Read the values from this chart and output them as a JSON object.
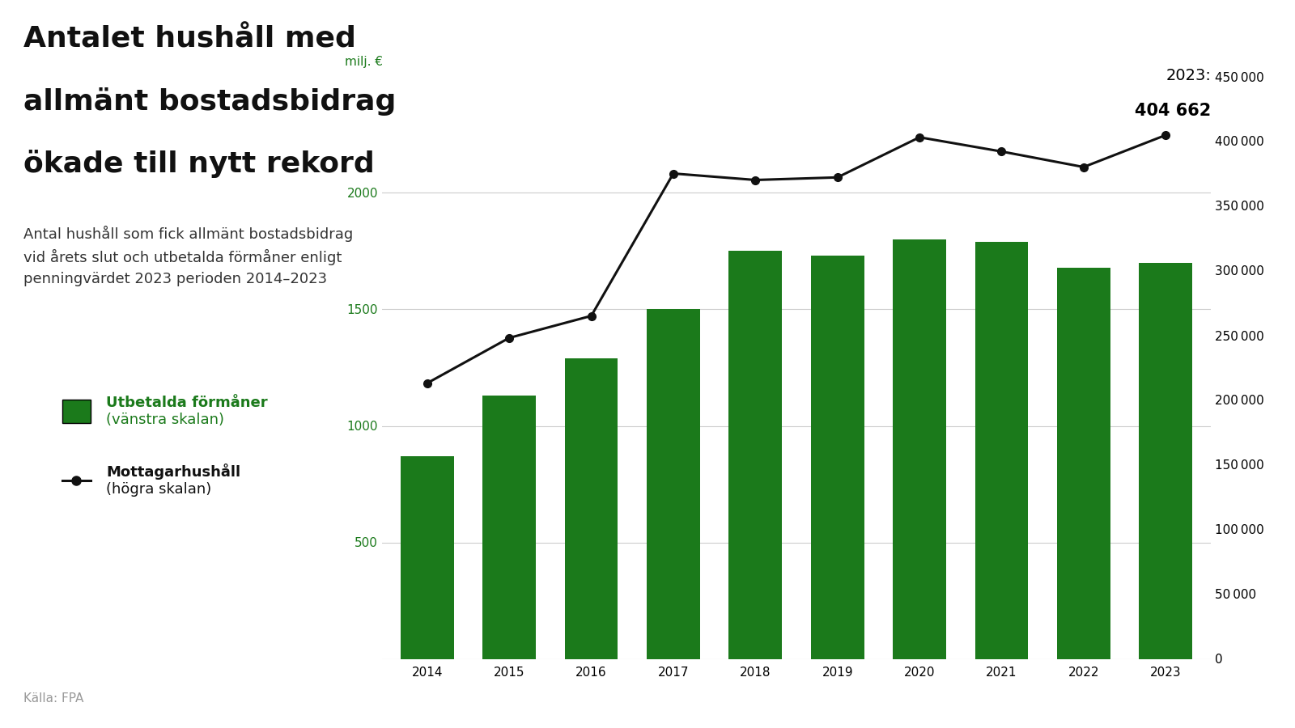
{
  "years": [
    2014,
    2015,
    2016,
    2017,
    2018,
    2019,
    2020,
    2021,
    2022,
    2023
  ],
  "bar_values": [
    870,
    1130,
    1290,
    1500,
    1750,
    1730,
    1800,
    1790,
    1680,
    1700
  ],
  "line_values": [
    213000,
    248000,
    265000,
    375000,
    370000,
    372000,
    403000,
    392000,
    380000,
    404662
  ],
  "bar_color": "#1b7a1b",
  "line_color": "#111111",
  "background_color": "#ffffff",
  "title_line1": "Antalet hushåll med",
  "title_line2": "allmänt bostadsbidrag",
  "title_line3": "ökade till nytt rekord",
  "subtitle": "Antal hushåll som fick allmänt bostadsbidrag\nvid årets slut och utbetalda förmåner enligt\npenningvärdet 2023 perioden 2014–2023",
  "left_axis_label": "milj. €",
  "left_ylim": [
    0,
    2500
  ],
  "left_yticks": [
    0,
    500,
    1000,
    1500,
    2000
  ],
  "right_ylim": [
    0,
    450000
  ],
  "right_yticks": [
    0,
    50000,
    100000,
    150000,
    200000,
    250000,
    300000,
    350000,
    400000,
    450000
  ],
  "annotation_top": "2023:",
  "annotation_bottom": "404 662",
  "source_text": "Källa: FPA",
  "legend_bar_label1": "Utbetalda förmåner",
  "legend_bar_label2": "(vänstra skalan)",
  "legend_line_label1": "Mottagarhushåll",
  "legend_line_label2": "(högra skalan)",
  "title_color": "#111111",
  "subtitle_color": "#333333",
  "source_color": "#999999",
  "green_label_color": "#1b7a1b",
  "grid_color": "#cccccc",
  "title_fontsize": 26,
  "subtitle_fontsize": 13,
  "axis_fontsize": 11,
  "legend_fontsize": 13
}
